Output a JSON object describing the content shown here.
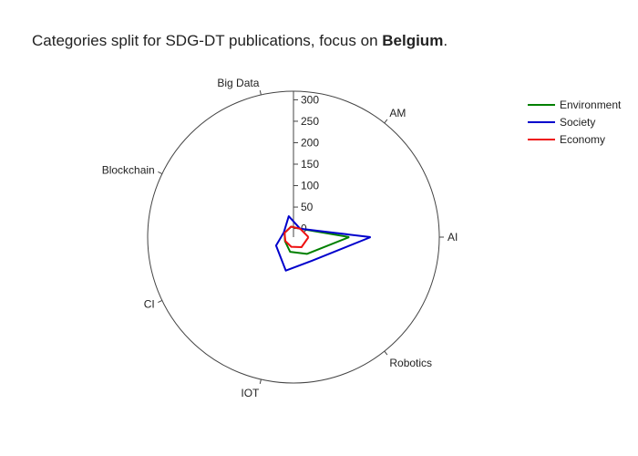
{
  "chart_data": {
    "type": "radar",
    "title_prefix": "Categories split for SDG-DT publications, focus on ",
    "title_bold": "Belgium",
    "title_suffix": ".",
    "categories": [
      "AI",
      "AM",
      "Big Data",
      "Blockchain",
      "CI",
      "IOT",
      "Robotics"
    ],
    "radial_axis": {
      "range": [
        -20,
        320
      ],
      "ticks": [
        0,
        50,
        100,
        150,
        200,
        250,
        300
      ]
    },
    "series": [
      {
        "name": "Environment",
        "color": "#008000",
        "values": [
          110,
          5,
          5,
          3,
          2,
          15,
          30
        ]
      },
      {
        "name": "Society",
        "color": "#0000cc",
        "values": [
          160,
          5,
          30,
          5,
          25,
          60,
          50
        ]
      },
      {
        "name": "Economy",
        "color": "#ee1111",
        "values": [
          15,
          5,
          5,
          3,
          1,
          3,
          10
        ]
      }
    ]
  }
}
